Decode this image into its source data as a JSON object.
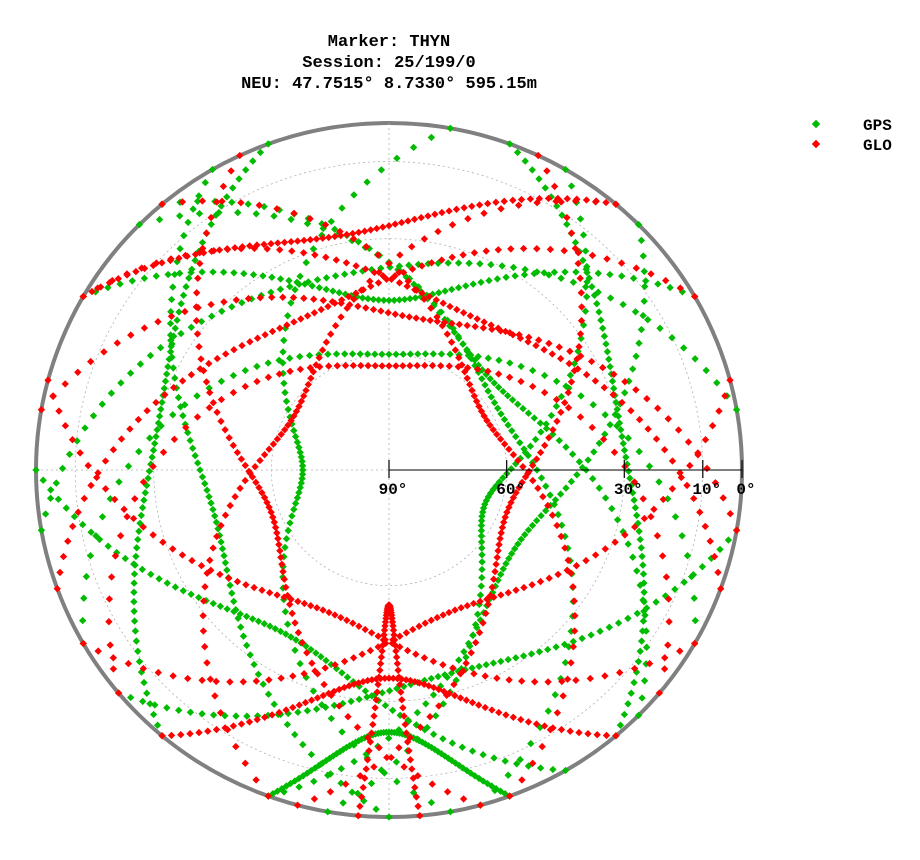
{
  "chart_data": {
    "type": "scatter",
    "projection": "polar-skyplot",
    "title_lines": [
      "Marker: THYN",
      "Session: 25/199/0",
      "NEU: 47.7515° 8.7330° 595.15m"
    ],
    "elevation_ticks": [
      {
        "value": 90,
        "label": "90°"
      },
      {
        "value": 60,
        "label": "60°"
      },
      {
        "value": 30,
        "label": "30°"
      },
      {
        "value": 10,
        "label": "10°"
      },
      {
        "value": 0,
        "label": "0°"
      }
    ],
    "elevation_range": [
      0,
      90
    ],
    "azimuth_range": [
      0,
      360
    ],
    "grid": true,
    "legend_position": "top-right",
    "colors": {
      "GPS": "#00bb00",
      "GLO": "#ff0000",
      "horizon": "#808080",
      "grid": "#b0b0b0"
    },
    "series": [
      {
        "name": "GPS",
        "color": "#00bb00",
        "tracks": [
          {
            "az_start": 300,
            "az_end": 60,
            "max_el": 46,
            "pass_dir": "north"
          },
          {
            "az_start": 315,
            "az_end": 165,
            "max_el": 58,
            "pass_dir": "east"
          },
          {
            "az_start": 200,
            "az_end": 45,
            "max_el": 52,
            "pass_dir": "east"
          },
          {
            "az_start": 150,
            "az_end": 270,
            "max_el": 40,
            "pass_dir": "south"
          },
          {
            "az_start": 240,
            "az_end": 120,
            "max_el": 60,
            "pass_dir": "north"
          },
          {
            "az_start": 180,
            "az_end": 330,
            "max_el": 44,
            "pass_dir": "west"
          },
          {
            "az_start": 100,
            "az_end": 230,
            "max_el": 35,
            "pass_dir": "south"
          },
          {
            "az_start": 30,
            "az_end": 190,
            "max_el": 64,
            "pass_dir": "east"
          },
          {
            "az_start": 170,
            "az_end": 10,
            "max_el": 68,
            "pass_dir": "west"
          },
          {
            "az_start": 260,
            "az_end": 80,
            "max_el": 38,
            "pass_dir": "north"
          },
          {
            "az_start": 135,
            "az_end": 320,
            "max_el": 55,
            "pass_dir": "north"
          },
          {
            "az_start": 220,
            "az_end": 340,
            "max_el": 30,
            "pass_dir": "west"
          },
          {
            "az_start": 20,
            "az_end": 140,
            "max_el": 30,
            "pass_dir": "east"
          },
          {
            "az_start": 160,
            "az_end": 200,
            "max_el": 22,
            "pass_dir": "south"
          }
        ]
      },
      {
        "name": "GLO",
        "color": "#ff0000",
        "tracks": [
          {
            "az_start": 320,
            "az_end": 160,
            "max_el": 62,
            "pass_dir": "east"
          },
          {
            "az_start": 40,
            "az_end": 200,
            "max_el": 62,
            "pass_dir": "west"
          },
          {
            "az_start": 280,
            "az_end": 100,
            "max_el": 50,
            "pass_dir": "north"
          },
          {
            "az_start": 195,
            "az_end": 25,
            "max_el": 58,
            "pass_dir": "east"
          },
          {
            "az_start": 165,
            "az_end": 335,
            "max_el": 58,
            "pass_dir": "west"
          },
          {
            "az_start": 230,
            "az_end": 130,
            "max_el": 63,
            "pass_dir": "north"
          },
          {
            "az_start": 250,
            "az_end": 60,
            "max_el": 45,
            "pass_dir": "north"
          },
          {
            "az_start": 110,
            "az_end": 300,
            "max_el": 45,
            "pass_dir": "north"
          },
          {
            "az_start": 175,
            "az_end": 185,
            "max_el": 55,
            "pass_dir": "south"
          },
          {
            "az_start": 140,
            "az_end": 220,
            "max_el": 36,
            "pass_dir": "south"
          },
          {
            "az_start": 300,
            "az_end": 40,
            "max_el": 28,
            "pass_dir": "north"
          },
          {
            "az_start": 75,
            "az_end": 240,
            "max_el": 50,
            "pass_dir": "south"
          },
          {
            "az_start": 120,
            "az_end": 285,
            "max_el": 50,
            "pass_dir": "south"
          }
        ]
      }
    ]
  }
}
